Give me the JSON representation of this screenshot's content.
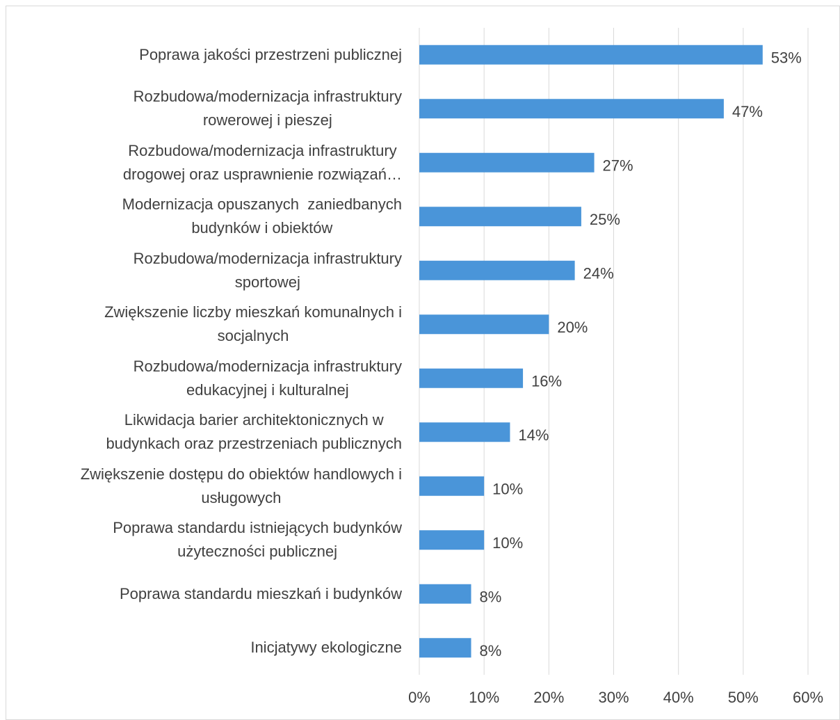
{
  "chart_data": {
    "type": "bar",
    "orientation": "horizontal",
    "categories": [
      "Poprawa jakości przestrzeni publicznej",
      "Rozbudowa/modernizacja infrastruktury\nrowerowej i pieszej",
      "Rozbudowa/modernizacja infrastruktury\ndrogowej oraz usprawnienie rozwiązań…",
      "Modernizacja opuszanych  zaniedbanych\nbudynków i obiektów",
      "Rozbudowa/modernizacja infrastruktury\nsportowej",
      "Zwiększenie liczby mieszkań komunalnych i\nsocjalnych",
      "Rozbudowa/modernizacja infrastruktury\nedukacyjnej i kulturalnej",
      "Likwidacja barier architektonicznych w\nbudynkach oraz przestrzeniach publicznych",
      "Zwiększenie dostępu do obiektów handlowych i\nusługowych",
      "Poprawa standardu istniejących budynków\nużyteczności publicznej",
      "Poprawa standardu mieszkań i budynków",
      "Inicjatywy ekologiczne"
    ],
    "values": [
      53,
      47,
      27,
      25,
      24,
      20,
      16,
      14,
      10,
      10,
      8,
      8
    ],
    "value_labels": [
      "53%",
      "47%",
      "27%",
      "25%",
      "24%",
      "20%",
      "16%",
      "14%",
      "10%",
      "10%",
      "8%",
      "8%"
    ],
    "color": "#4a95d9",
    "xlim": [
      0,
      60
    ],
    "xticks": [
      {
        "value": 0,
        "label": "0%"
      },
      {
        "value": 10,
        "label": "10%"
      },
      {
        "value": 20,
        "label": "20%"
      },
      {
        "value": 30,
        "label": "30%"
      },
      {
        "value": 40,
        "label": "40%"
      },
      {
        "value": 50,
        "label": "50%"
      },
      {
        "value": 60,
        "label": "60%"
      }
    ],
    "grid": true
  }
}
